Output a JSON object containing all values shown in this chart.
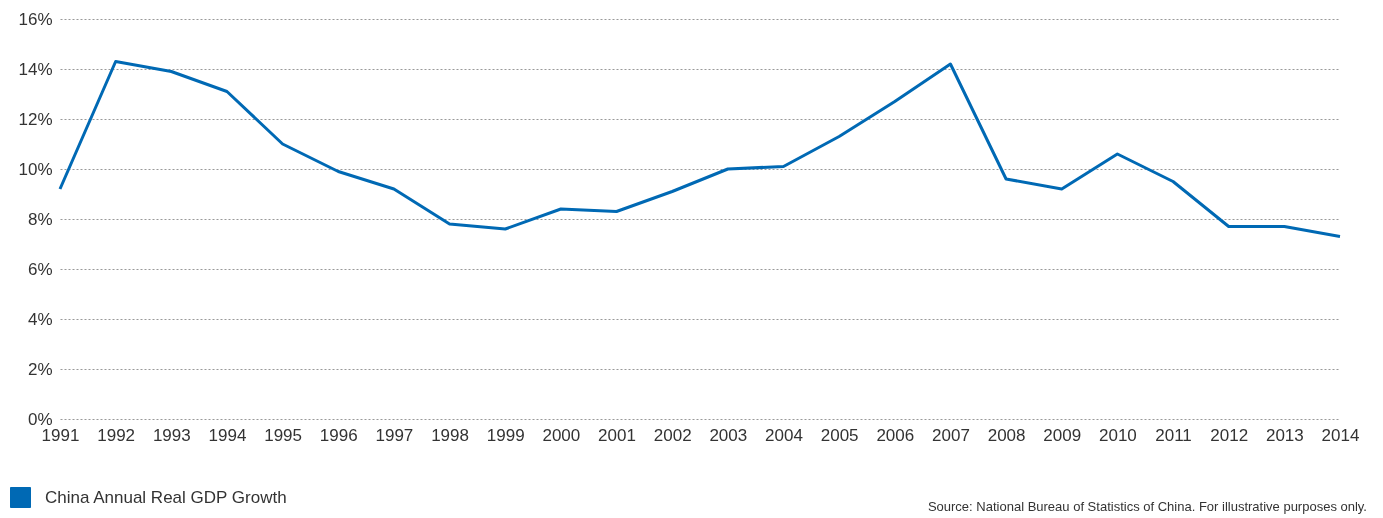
{
  "chart_data": {
    "type": "line",
    "categories": [
      "1991",
      "1992",
      "1993",
      "1994",
      "1995",
      "1996",
      "1997",
      "1998",
      "1999",
      "2000",
      "2001",
      "2002",
      "2003",
      "2004",
      "2005",
      "2006",
      "2007",
      "2008",
      "2009",
      "2010",
      "2011",
      "2012",
      "2013",
      "2014"
    ],
    "series": [
      {
        "name": "China Annual Real GDP Growth",
        "color": "#0069b4",
        "values": [
          9.2,
          14.3,
          13.9,
          13.1,
          11.0,
          9.9,
          9.2,
          7.8,
          7.6,
          8.4,
          8.3,
          9.1,
          10.0,
          10.1,
          11.3,
          12.7,
          14.2,
          9.6,
          9.2,
          10.6,
          9.5,
          7.7,
          7.7,
          7.3
        ]
      }
    ],
    "ylim": [
      0,
      16
    ],
    "yticks": [
      {
        "value": 0,
        "label": "0%"
      },
      {
        "value": 2,
        "label": "2%"
      },
      {
        "value": 4,
        "label": "4%"
      },
      {
        "value": 6,
        "label": "6%"
      },
      {
        "value": 8,
        "label": "8%"
      },
      {
        "value": 10,
        "label": "10%"
      },
      {
        "value": 12,
        "label": "12%"
      },
      {
        "value": 14,
        "label": "14%"
      },
      {
        "value": 16,
        "label": "16%"
      }
    ],
    "grid": "y",
    "legend": "bottom left",
    "marker": "none",
    "line_style": "solid",
    "annotations": [
      "Source: National Bureau of Statistics of China. For illustrative purposes only."
    ]
  }
}
